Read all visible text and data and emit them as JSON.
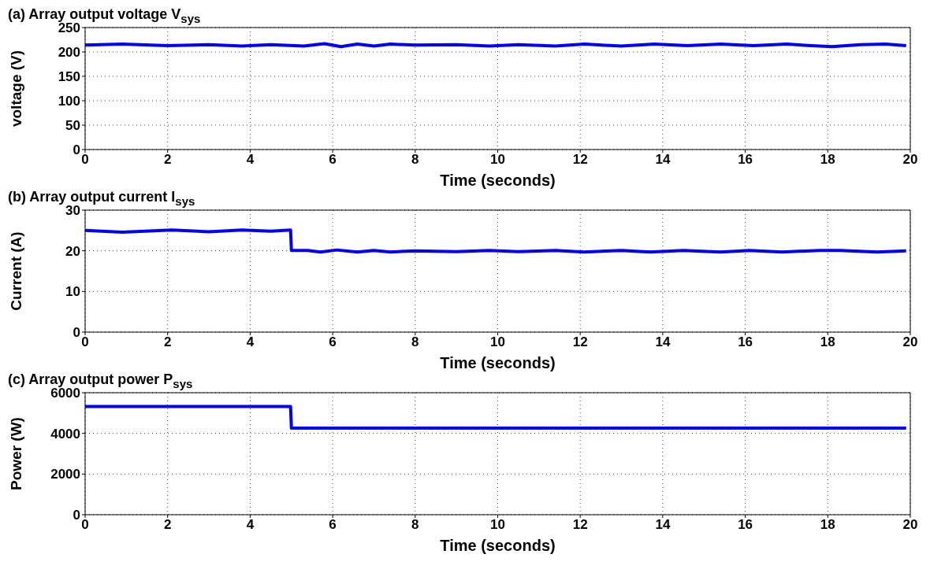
{
  "chart_data": [
    {
      "type": "line",
      "title": "(a) Array output voltage V$_{sys}$",
      "xlabel": "Time (seconds)",
      "ylabel": "voltage (V)",
      "color": "#0000ff",
      "xlim": [
        0,
        20
      ],
      "xticks": [
        0,
        2,
        4,
        6,
        8,
        10,
        12,
        14,
        16,
        18,
        20
      ],
      "ylim": [
        0,
        250
      ],
      "yticks": [
        0,
        50,
        100,
        150,
        200,
        250
      ],
      "grid": true,
      "x": [
        0,
        0.9,
        2,
        3,
        3.8,
        4.5,
        5.3,
        5.8,
        6.2,
        6.6,
        7,
        7.4,
        8,
        9,
        9.8,
        10.5,
        11.4,
        12.1,
        13,
        13.8,
        14.6,
        15.4,
        16.2,
        17,
        17.6,
        18.1,
        18.8,
        19.4,
        19.9
      ],
      "values": [
        214,
        216,
        213,
        215,
        212,
        215,
        212,
        217,
        211,
        216,
        212,
        216,
        214,
        215,
        212,
        215,
        212,
        216,
        212,
        216,
        213,
        216,
        213,
        216,
        213,
        211,
        215,
        216,
        213
      ]
    },
    {
      "type": "line",
      "title": "(b) Array output current I$_{sys}$",
      "xlabel": "Time (seconds)",
      "ylabel": "Current (A)",
      "color": "#0000ff",
      "xlim": [
        0,
        20
      ],
      "xticks": [
        0,
        2,
        4,
        6,
        8,
        10,
        12,
        14,
        16,
        18,
        20
      ],
      "ylim": [
        0,
        30
      ],
      "yticks": [
        0,
        10,
        20,
        30
      ],
      "grid": true,
      "x": [
        0,
        0.9,
        2.1,
        3,
        3.8,
        4.5,
        4.98,
        5,
        5.4,
        5.7,
        6.1,
        6.6,
        7,
        7.4,
        8,
        9,
        9.8,
        10.5,
        11.4,
        12.1,
        13,
        13.7,
        14.5,
        15.4,
        16.1,
        16.9,
        17.8,
        18.3,
        19.2,
        19.9
      ],
      "values": [
        25,
        24.6,
        25.1,
        24.7,
        25.1,
        24.8,
        25.1,
        20.1,
        20.1,
        19.7,
        20.2,
        19.7,
        20.1,
        19.7,
        20,
        19.8,
        20.1,
        19.8,
        20.1,
        19.7,
        20.1,
        19.7,
        20.1,
        19.7,
        20.1,
        19.7,
        20.1,
        20.1,
        19.7,
        20
      ]
    },
    {
      "type": "line",
      "title": "(c) Array output power P$_{sys}$",
      "xlabel": "Time (seconds)",
      "ylabel": "Power (W)",
      "color": "#0000ff",
      "xlim": [
        0,
        20
      ],
      "xticks": [
        0,
        2,
        4,
        6,
        8,
        10,
        12,
        14,
        16,
        18,
        20
      ],
      "ylim": [
        0,
        6000
      ],
      "yticks": [
        0,
        2000,
        4000,
        6000
      ],
      "grid": true,
      "x": [
        0,
        4.98,
        5,
        19.9
      ],
      "values": [
        5320,
        5320,
        4260,
        4260
      ]
    }
  ]
}
